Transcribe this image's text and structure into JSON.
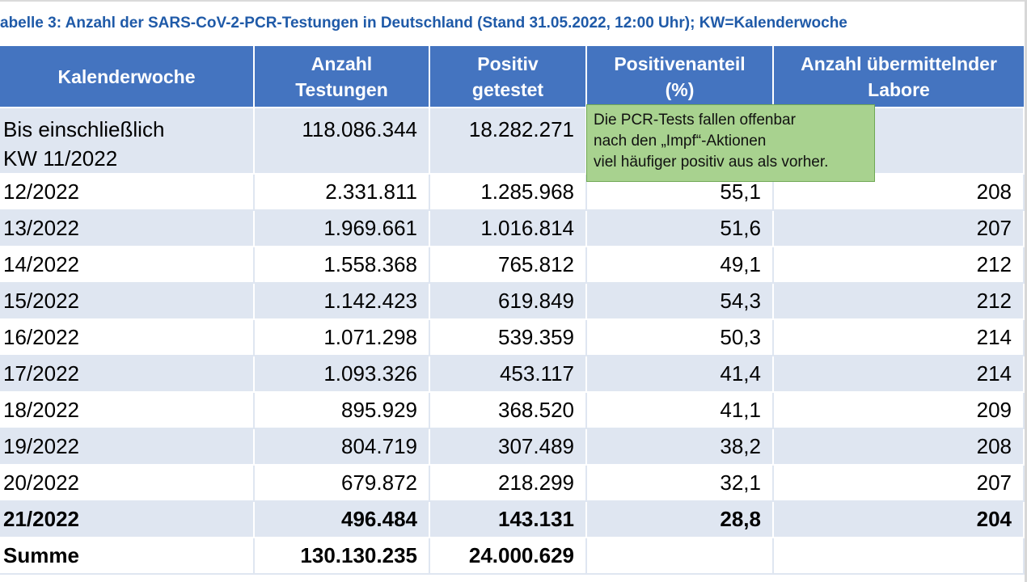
{
  "caption": "abelle 3: Anzahl der SARS-CoV-2-PCR-Testungen in Deutschland (Stand 31.05.2022, 12:00 Uhr); KW=Kalenderwoche",
  "table": {
    "headers": [
      {
        "line1": "Kalenderwoche",
        "line2": ""
      },
      {
        "line1": "Anzahl",
        "line2": "Testungen"
      },
      {
        "line1": "Positiv",
        "line2": "getestet"
      },
      {
        "line1": "Positivenanteil",
        "line2": "(%)"
      },
      {
        "line1": "Anzahl übermittelnder",
        "line2": "Labore"
      }
    ],
    "first_row": {
      "week_line1": "Bis einschließlich",
      "week_line2": "KW 11/2022",
      "tests": "118.086.344",
      "positive": "18.282.271",
      "share": "",
      "labs": ""
    },
    "rows": [
      {
        "week": "12/2022",
        "tests": "2.331.811",
        "positive": "1.285.968",
        "share": "55,1",
        "labs": "208"
      },
      {
        "week": "13/2022",
        "tests": "1.969.661",
        "positive": "1.016.814",
        "share": "51,6",
        "labs": "207"
      },
      {
        "week": "14/2022",
        "tests": "1.558.368",
        "positive": "765.812",
        "share": "49,1",
        "labs": "212"
      },
      {
        "week": "15/2022",
        "tests": "1.142.423",
        "positive": "619.849",
        "share": "54,3",
        "labs": "212"
      },
      {
        "week": "16/2022",
        "tests": "1.071.298",
        "positive": "539.359",
        "share": "50,3",
        "labs": "214"
      },
      {
        "week": "17/2022",
        "tests": "1.093.326",
        "positive": "453.117",
        "share": "41,4",
        "labs": "214"
      },
      {
        "week": "18/2022",
        "tests": "895.929",
        "positive": "368.520",
        "share": "41,1",
        "labs": "209"
      },
      {
        "week": "19/2022",
        "tests": "804.719",
        "positive": "307.489",
        "share": "38,2",
        "labs": "208"
      },
      {
        "week": "20/2022",
        "tests": "679.872",
        "positive": "218.299",
        "share": "32,1",
        "labs": "207"
      },
      {
        "week": "21/2022",
        "tests": "496.484",
        "positive": "143.131",
        "share": "28,8",
        "labs": "204"
      }
    ],
    "sum_row": {
      "label": "Summe",
      "tests": "130.130.235",
      "positive": "24.000.629",
      "share": "",
      "labs": ""
    }
  },
  "annotation": {
    "line1": "Die PCR-Tests fallen offenbar",
    "line2": "nach den „Impf“-Aktionen",
    "line3": "viel häufiger positiv aus als vorher."
  },
  "colors": {
    "header_bg": "#4474c0",
    "band_bg": "#dfe6f1",
    "caption_text": "#1f5aa8",
    "annotation_bg": "#a8d28f"
  }
}
